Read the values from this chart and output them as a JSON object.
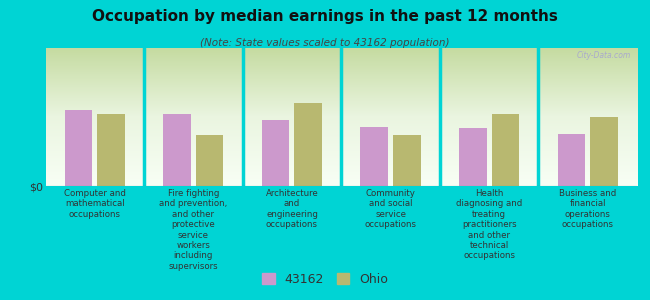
{
  "title": "Occupation by median earnings in the past 12 months",
  "subtitle": "(Note: State values scaled to 43162 population)",
  "background_color": "#00d4d4",
  "bar_color_43162": "#cc99cc",
  "bar_color_ohio": "#b8b870",
  "ylabel": "$0",
  "categories": [
    "Computer and\nmathematical\noccupations",
    "Fire fighting\nand prevention,\nand other\nprotective\nservice\nworkers\nincluding\nsupervisors",
    "Architecture\nand\nengineering\noccupations",
    "Community\nand social\nservice\noccupations",
    "Health\ndiagnosing and\ntreating\npractitioners\nand other\ntechnical\noccupations",
    "Business and\nfinancial\noperations\noccupations"
  ],
  "values_43162": [
    0.55,
    0.52,
    0.48,
    0.43,
    0.42,
    0.38
  ],
  "values_ohio": [
    0.52,
    0.37,
    0.6,
    0.37,
    0.52,
    0.5
  ],
  "legend_43162": "43162",
  "legend_ohio": "Ohio",
  "watermark": "City-Data.com",
  "plot_bg_colors": [
    "#c8dca8",
    "#eaf4dc",
    "#f5fff5"
  ],
  "divider_color": "#00d4d4",
  "ylim_max": 1.0
}
